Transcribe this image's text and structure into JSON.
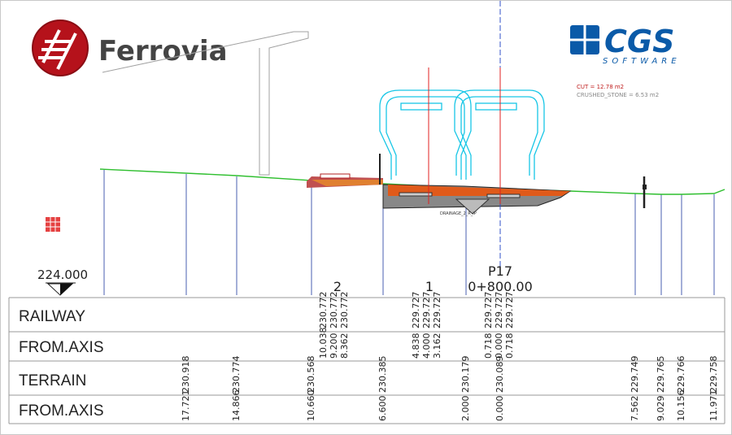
{
  "brand": {
    "logo_left": "Ferrovia",
    "logo_right": "CGS",
    "logo_right_sub": "SOFTWARE",
    "colors": {
      "ferrovia_red": "#b5121b",
      "cgs_blue": "#0a5aa8",
      "terrain_line": "#2fbf2f",
      "offset_lines": "#4a5fb0",
      "cyan_train": "#17c6e6",
      "axis_red": "#e02020",
      "axis_blue": "#3050c8",
      "cut_fill": "#e05a1a"
    }
  },
  "annotations": {
    "cut": "CUT = 12.78 m2",
    "crushed_stone": "CRUSHED_STONE = 6.53 m2",
    "drainage": "DRAINAGE_2_R_IP",
    "datum": "224.000",
    "track_2": "2",
    "track_1": "1",
    "station_name": "P17",
    "station_chainage": "0+800.00"
  },
  "table": {
    "rows": [
      "RAILWAY",
      "FROM.AXIS",
      "TERRAIN",
      "FROM.AXIS"
    ],
    "railway": [
      "230.772",
      "230.772",
      "230.772",
      "229.727",
      "229.727",
      "229.727",
      "229.727",
      "229.727",
      "229.727"
    ],
    "railway_axis": [
      "10.038",
      "9.200",
      "8.362",
      "4.838",
      "4.000",
      "3.162",
      "0.718",
      "0.000",
      "0.718"
    ],
    "terrain": [
      "230.918",
      "230.774",
      "230.568",
      "230.385",
      "230.179",
      "230.089",
      "229.749",
      "229.765",
      "229.766",
      "229.758"
    ],
    "terrain_axis": [
      "17.721",
      "14.866",
      "10.660",
      "6.600",
      "2.000",
      "0.000",
      "7.562",
      "9.029",
      "10.156",
      "11.971"
    ]
  }
}
